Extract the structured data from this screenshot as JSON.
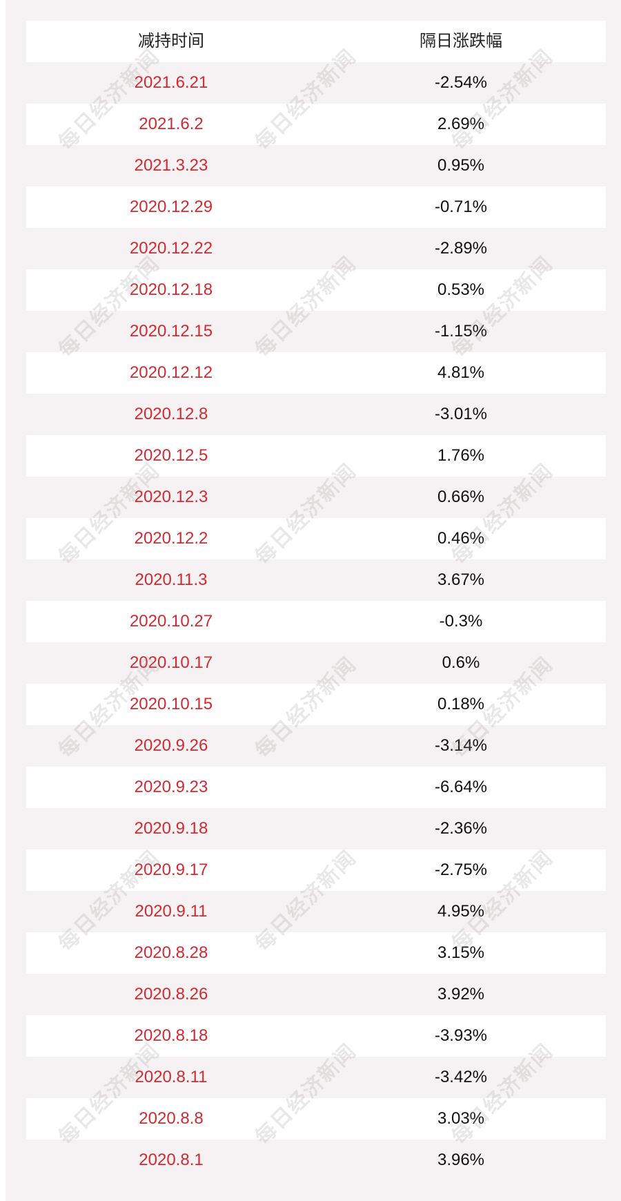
{
  "table": {
    "headers": [
      "减持时间",
      "隔日涨跌幅"
    ],
    "rows": [
      {
        "date": "2021.6.21",
        "change": "-2.54%"
      },
      {
        "date": "2021.6.2",
        "change": "2.69%"
      },
      {
        "date": "2021.3.23",
        "change": "0.95%"
      },
      {
        "date": "2020.12.29",
        "change": "-0.71%"
      },
      {
        "date": "2020.12.22",
        "change": "-2.89%"
      },
      {
        "date": "2020.12.18",
        "change": "0.53%"
      },
      {
        "date": "2020.12.15",
        "change": "-1.15%"
      },
      {
        "date": "2020.12.12",
        "change": "4.81%"
      },
      {
        "date": "2020.12.8",
        "change": "-3.01%"
      },
      {
        "date": "2020.12.5",
        "change": "1.76%"
      },
      {
        "date": "2020.12.3",
        "change": "0.66%"
      },
      {
        "date": "2020.12.2",
        "change": "0.46%"
      },
      {
        "date": "2020.11.3",
        "change": "3.67%"
      },
      {
        "date": "2020.10.27",
        "change": "-0.3%"
      },
      {
        "date": "2020.10.17",
        "change": "0.6%"
      },
      {
        "date": "2020.10.15",
        "change": "0.18%"
      },
      {
        "date": "2020.9.26",
        "change": "-3.14%"
      },
      {
        "date": "2020.9.23",
        "change": "-6.64%"
      },
      {
        "date": "2020.9.18",
        "change": "-2.36%"
      },
      {
        "date": "2020.9.17",
        "change": "-2.75%"
      },
      {
        "date": "2020.9.11",
        "change": "4.95%"
      },
      {
        "date": "2020.8.28",
        "change": "3.15%"
      },
      {
        "date": "2020.8.26",
        "change": "3.92%"
      },
      {
        "date": "2020.8.18",
        "change": "-3.93%"
      },
      {
        "date": "2020.8.11",
        "change": "-3.42%"
      },
      {
        "date": "2020.8.8",
        "change": "3.03%"
      },
      {
        "date": "2020.8.1",
        "change": "3.96%"
      }
    ]
  },
  "watermark": "每日经济新闻",
  "colors": {
    "date_text": "#d12a30",
    "change_text": "#111111",
    "row_white": "#ffffff",
    "row_tint": "#f6f2f3"
  }
}
